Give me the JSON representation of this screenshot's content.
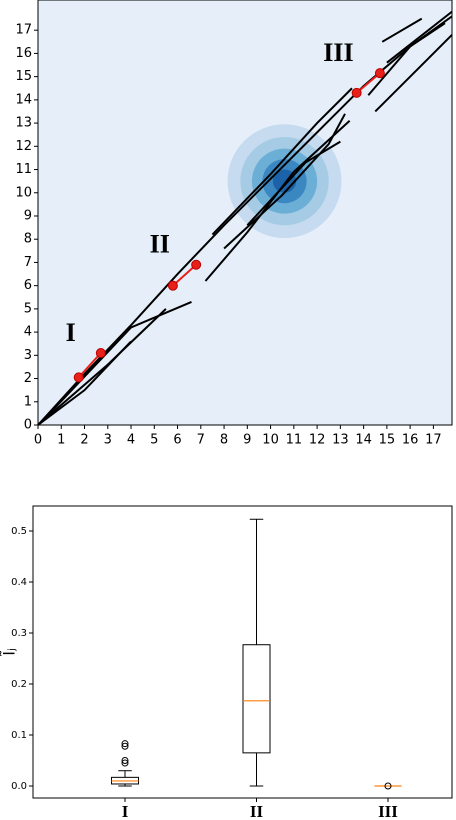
{
  "chart_data": [
    {
      "type": "line",
      "background": "#e6eff9",
      "xlim": [
        0,
        17.8
      ],
      "ylim": [
        0,
        18.3
      ],
      "xticks": [
        0,
        1,
        2,
        3,
        4,
        5,
        6,
        7,
        8,
        9,
        10,
        11,
        12,
        13,
        14,
        15,
        16,
        17
      ],
      "yticks": [
        0,
        1,
        2,
        3,
        4,
        5,
        6,
        7,
        8,
        9,
        10,
        11,
        12,
        13,
        14,
        15,
        16,
        17
      ],
      "contour": {
        "center": [
          10.6,
          10.5
        ],
        "radii": [
          2.45,
          1.9,
          1.4,
          0.95,
          0.5
        ],
        "colors": [
          "#c6dbef",
          "#a5cbe5",
          "#6baed6",
          "#3a87c2",
          "#1c62a8"
        ]
      },
      "series": [
        {
          "color": "#000000",
          "x": [
            0,
            2,
            4,
            6,
            8,
            10,
            12,
            14,
            16,
            17.5
          ],
          "y": [
            0,
            2.2,
            4.3,
            6.5,
            8.6,
            10.6,
            12.6,
            14.6,
            16.3,
            17.3
          ]
        },
        {
          "color": "#000000",
          "x": [
            0,
            3,
            5.5
          ],
          "y": [
            0,
            2.6,
            5.0
          ]
        },
        {
          "color": "#000000",
          "x": [
            0.5,
            4,
            6.6
          ],
          "y": [
            0.5,
            4.2,
            5.3
          ]
        },
        {
          "color": "#000000",
          "x": [
            0,
            2,
            4
          ],
          "y": [
            0,
            1.5,
            3.6
          ]
        },
        {
          "color": "#000000",
          "x": [
            7.2,
            9,
            11,
            13.4
          ],
          "y": [
            6.2,
            8.3,
            10.9,
            13.1
          ]
        },
        {
          "color": "#000000",
          "x": [
            7.5,
            10,
            12,
            13.5
          ],
          "y": [
            8.2,
            10.8,
            13,
            14.5
          ]
        },
        {
          "color": "#000000",
          "x": [
            8,
            10.5,
            12.5,
            13.2
          ],
          "y": [
            7.6,
            9.9,
            12.1,
            13.4
          ]
        },
        {
          "color": "#000000",
          "x": [
            9,
            11.5,
            13
          ],
          "y": [
            8.6,
            11.3,
            12.2
          ]
        },
        {
          "color": "#000000",
          "x": [
            14.2,
            16,
            17.8
          ],
          "y": [
            14.2,
            16.3,
            17.6
          ]
        },
        {
          "color": "#000000",
          "x": [
            14.5,
            16.5,
            17.8
          ],
          "y": [
            13.5,
            15.5,
            16.8
          ]
        },
        {
          "color": "#000000",
          "x": [
            14.8,
            16.5
          ],
          "y": [
            16.5,
            17.5
          ]
        },
        {
          "color": "#000000",
          "x": [
            15,
            17.8
          ],
          "y": [
            15.6,
            17.8
          ]
        }
      ],
      "points": [
        {
          "color": "#e8201a",
          "x": [
            1.75,
            2.7
          ],
          "y": [
            2.05,
            3.1
          ]
        },
        {
          "color": "#e8201a",
          "x": [
            5.8,
            6.8
          ],
          "y": [
            6.0,
            6.9
          ]
        },
        {
          "color": "#e8201a",
          "x": [
            13.7,
            14.7
          ],
          "y": [
            14.3,
            15.15
          ]
        }
      ],
      "annotations": [
        "I",
        "II",
        "III"
      ]
    },
    {
      "type": "box",
      "ylabel": "Ĩⱼ",
      "categories": [
        "I",
        "II",
        "III"
      ],
      "ylim": [
        -0.0235,
        0.549
      ],
      "yticks": [
        {
          "value": 0,
          "label": "0.0"
        },
        0.1,
        0.2,
        0.3,
        0.4,
        0.5
      ],
      "median_color": "#ff7f0e",
      "boxes": [
        {
          "whislo": 0,
          "q1": 0.004,
          "med": 0.01,
          "q3": 0.017,
          "whishi": 0.03,
          "fliers": [
            0.045,
            0.05,
            0.078,
            0.083
          ]
        },
        {
          "whislo": 0,
          "q1": 0.065,
          "med": 0.167,
          "q3": 0.277,
          "whishi": 0.523,
          "fliers": []
        },
        {
          "whislo": 0,
          "q1": 0,
          "med": 0,
          "q3": 0,
          "whishi": 0,
          "fliers": [
            0
          ]
        }
      ]
    }
  ]
}
